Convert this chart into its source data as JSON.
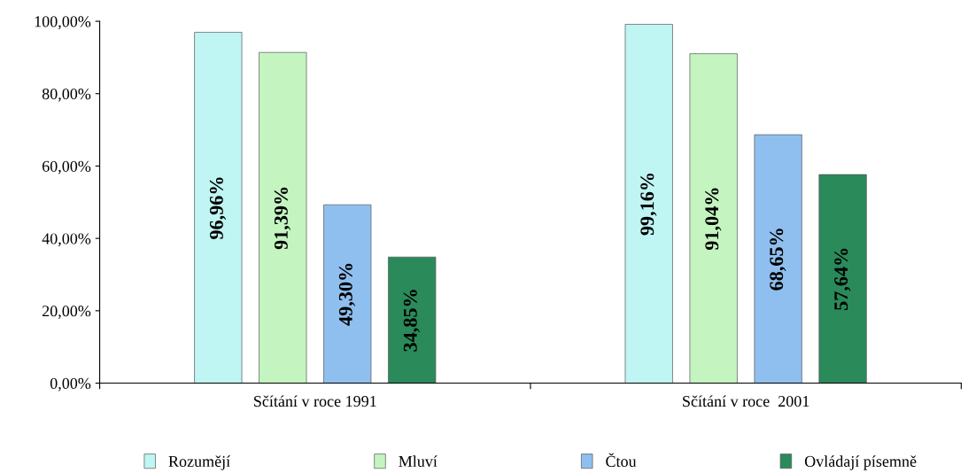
{
  "chart_data": {
    "type": "bar",
    "categories": [
      "Sčítání v roce 1991",
      "Sčítání v roce  2001"
    ],
    "series": [
      {
        "name": "Rozumějí",
        "color": "#bff5f2",
        "values": [
          96.96,
          99.16
        ],
        "value_labels": [
          "96,96%",
          "99,16%"
        ]
      },
      {
        "name": "Mluví",
        "color": "#c4f5c0",
        "values": [
          91.39,
          91.04
        ],
        "value_labels": [
          "91,39%",
          "91,04%"
        ]
      },
      {
        "name": "Čtou",
        "color": "#8fbfef",
        "values": [
          49.3,
          68.65
        ],
        "value_labels": [
          "49,30%",
          "68,65%"
        ]
      },
      {
        "name": "Ovládají písemně",
        "color": "#2a8a5a",
        "values": [
          34.85,
          57.64
        ],
        "value_labels": [
          "34,85%",
          "57,64%"
        ]
      }
    ],
    "ylim": [
      0,
      100
    ],
    "yticks": [
      {
        "value": 0,
        "label": "0,00%"
      },
      {
        "value": 20,
        "label": "20,00%"
      },
      {
        "value": 40,
        "label": "40,00%"
      },
      {
        "value": 60,
        "label": "60,00%"
      },
      {
        "value": 80,
        "label": "80,00%"
      },
      {
        "value": 100,
        "label": "100,00%"
      }
    ],
    "legend": "bottom",
    "grid": false
  }
}
